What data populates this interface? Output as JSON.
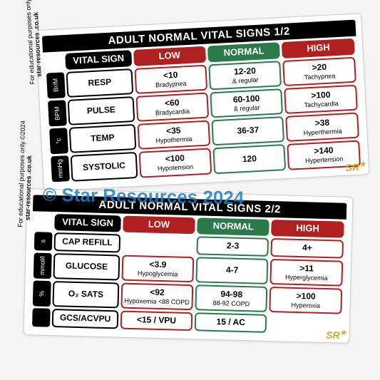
{
  "watermark": "© Star Resources 2024",
  "side_note1": "For educational purposes only ©2024",
  "side_note2": "star-resources .co.uk",
  "sr_brand": "SR",
  "cards": [
    {
      "title": "ADULT NORMAL VITAL SIGNS 1/2",
      "headers": {
        "vital": "VITAL SIGN",
        "low": "LOW",
        "normal": "NORMAL",
        "high": "HIGH"
      },
      "rows": [
        {
          "unit": "Br/M",
          "vital": "RESP",
          "low": {
            "main": "<10",
            "sub": "Bradypnea"
          },
          "normal": {
            "main": "12-20",
            "sub": "& regular"
          },
          "high": {
            "main": ">20",
            "sub": "Tachypnea"
          }
        },
        {
          "unit": "BPM",
          "vital": "PULSE",
          "low": {
            "main": "<60",
            "sub": "Bradycardia"
          },
          "normal": {
            "main": "60-100",
            "sub": "& regular"
          },
          "high": {
            "main": ">100",
            "sub": "Tachycardia"
          }
        },
        {
          "unit": "°c",
          "vital": "TEMP",
          "low": {
            "main": "<35",
            "sub": "Hypothermia"
          },
          "normal": {
            "main": "36-37",
            "sub": ""
          },
          "high": {
            "main": ">38",
            "sub": "Hyperthermia"
          }
        },
        {
          "unit": "mmHg",
          "vital": "SYSTOLIC",
          "low": {
            "main": "<100",
            "sub": "Hypotension"
          },
          "normal": {
            "main": "120",
            "sub": ""
          },
          "high": {
            "main": ">140",
            "sub": "Hypertension"
          }
        }
      ]
    },
    {
      "title": "ADULT NORMAL VITAL SIGNS 2/2",
      "headers": {
        "vital": "VITAL SIGN",
        "low": "LOW",
        "normal": "NORMAL",
        "high": "HIGH"
      },
      "rows": [
        {
          "unit": "s",
          "vital": "CAP REFILL",
          "low": null,
          "normal": {
            "main": "2-3",
            "sub": ""
          },
          "high": {
            "main": "4+",
            "sub": ""
          }
        },
        {
          "unit": "mmol/l",
          "vital": "GLUCOSE",
          "low": {
            "main": "<3.9",
            "sub": "Hypoglycemia"
          },
          "normal": {
            "main": "4-7",
            "sub": ""
          },
          "high": {
            "main": ">11",
            "sub": "Hyperglycemia"
          }
        },
        {
          "unit": "%",
          "vital": "O₂ SATS",
          "low": {
            "main": "<92",
            "sub": "Hypoxemia <88 COPD"
          },
          "normal": {
            "main": "94-98",
            "sub": "88-92 COPD"
          },
          "high": {
            "main": ">100",
            "sub": "Hyperoxia"
          }
        },
        {
          "unit": "",
          "vital": "GCS/ACVPU",
          "low": {
            "main": "<15 / VPU",
            "sub": ""
          },
          "normal": {
            "main": "15 / AC",
            "sub": ""
          },
          "high": null
        }
      ]
    }
  ]
}
